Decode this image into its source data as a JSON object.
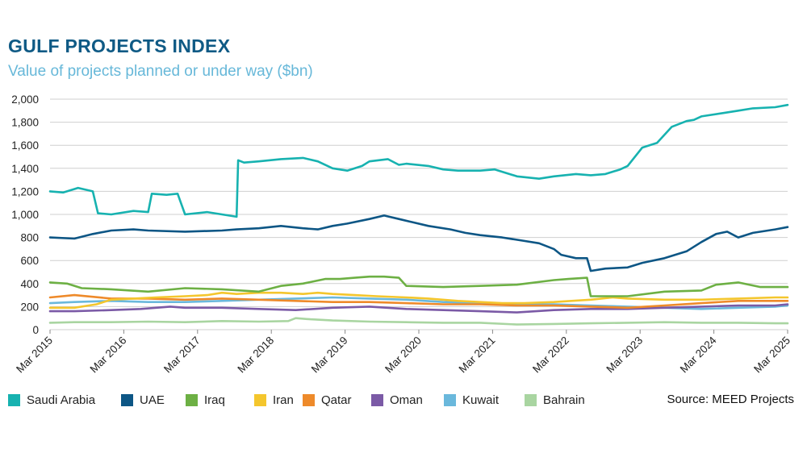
{
  "header": {
    "title": "GULF PROJECTS INDEX",
    "subtitle": "Value of projects planned or under way ($bn)",
    "title_color": "#0f5a85",
    "subtitle_color": "#67b8d9"
  },
  "source": "Source: MEED Projects",
  "chart_data": {
    "type": "line",
    "title": "GULF PROJECTS INDEX",
    "subtitle": "Value of projects planned or under way ($bn)",
    "ylim": [
      0,
      2000
    ],
    "yticks": [
      0,
      200,
      400,
      600,
      800,
      1000,
      1200,
      1400,
      1600,
      1800,
      2000
    ],
    "ytick_labels": [
      "0",
      "200",
      "400",
      "600",
      "800",
      "1,000",
      "1,200",
      "1,400",
      "1,600",
      "1,800",
      "2,000"
    ],
    "xlim": [
      2015.17,
      2025.17
    ],
    "xticks": [
      2015.17,
      2016.17,
      2017.17,
      2018.17,
      2019.17,
      2020.17,
      2021.17,
      2022.17,
      2023.17,
      2024.17,
      2025.17
    ],
    "xtick_labels": [
      "Mar 2015",
      "Mar 2016",
      "Mar 2017",
      "Mar 2018",
      "Mar 2019",
      "Mar 2020",
      "Mar 2021",
      "Mar 2022",
      "Mar 2023",
      "Mar 2024",
      "Mar 2025"
    ],
    "grid": "horizontal",
    "legend_position": "bottom",
    "series": [
      {
        "name": "Saudi Arabia",
        "color": "#17b2b0",
        "x": [
          2015.17,
          2015.35,
          2015.55,
          2015.75,
          2015.82,
          2016.0,
          2016.3,
          2016.5,
          2016.55,
          2016.75,
          2016.9,
          2017.0,
          2017.3,
          2017.5,
          2017.7,
          2017.72,
          2017.8,
          2018.0,
          2018.3,
          2018.6,
          2018.8,
          2019.0,
          2019.2,
          2019.4,
          2019.5,
          2019.75,
          2019.9,
          2020.0,
          2020.3,
          2020.5,
          2020.7,
          2021.0,
          2021.2,
          2021.5,
          2021.8,
          2022.0,
          2022.3,
          2022.5,
          2022.7,
          2022.9,
          2023.0,
          2023.2,
          2023.4,
          2023.6,
          2023.8,
          2023.9,
          2024.0,
          2024.3,
          2024.5,
          2024.7,
          2025.0,
          2025.17
        ],
        "values": [
          1200,
          1190,
          1230,
          1200,
          1010,
          1000,
          1030,
          1020,
          1180,
          1170,
          1180,
          1000,
          1020,
          1000,
          980,
          1470,
          1450,
          1460,
          1480,
          1490,
          1460,
          1400,
          1380,
          1420,
          1460,
          1480,
          1430,
          1440,
          1420,
          1390,
          1380,
          1380,
          1390,
          1330,
          1310,
          1330,
          1350,
          1340,
          1350,
          1390,
          1420,
          1580,
          1620,
          1760,
          1810,
          1820,
          1850,
          1880,
          1900,
          1920,
          1930,
          1950
        ]
      },
      {
        "name": "UAE",
        "color": "#0d5685",
        "x": [
          2015.17,
          2015.5,
          2015.75,
          2016.0,
          2016.3,
          2016.5,
          2017.0,
          2017.5,
          2017.7,
          2018.0,
          2018.3,
          2018.6,
          2018.8,
          2019.0,
          2019.2,
          2019.5,
          2019.7,
          2019.9,
          2020.1,
          2020.3,
          2020.6,
          2020.8,
          2021.0,
          2021.3,
          2021.6,
          2021.8,
          2022.0,
          2022.1,
          2022.3,
          2022.45,
          2022.5,
          2022.7,
          2023.0,
          2023.2,
          2023.5,
          2023.8,
          2024.0,
          2024.2,
          2024.35,
          2024.5,
          2024.7,
          2025.0,
          2025.17
        ],
        "values": [
          800,
          790,
          830,
          860,
          870,
          860,
          850,
          860,
          870,
          880,
          900,
          880,
          870,
          900,
          920,
          960,
          990,
          960,
          930,
          900,
          870,
          840,
          820,
          800,
          770,
          750,
          700,
          650,
          620,
          620,
          510,
          530,
          540,
          580,
          620,
          680,
          760,
          830,
          850,
          800,
          840,
          870,
          890
        ]
      },
      {
        "name": "Iraq",
        "color": "#6db044",
        "x": [
          2015.17,
          2015.4,
          2015.6,
          2016.0,
          2016.5,
          2017.0,
          2017.5,
          2018.0,
          2018.3,
          2018.6,
          2018.9,
          2019.1,
          2019.3,
          2019.5,
          2019.7,
          2019.9,
          2020.0,
          2020.5,
          2021.0,
          2021.5,
          2022.0,
          2022.2,
          2022.45,
          2022.5,
          2022.8,
          2023.0,
          2023.5,
          2024.0,
          2024.2,
          2024.5,
          2024.8,
          2025.17
        ],
        "values": [
          410,
          400,
          360,
          350,
          330,
          360,
          350,
          330,
          380,
          400,
          440,
          440,
          450,
          460,
          460,
          450,
          380,
          370,
          380,
          390,
          430,
          440,
          450,
          290,
          290,
          290,
          330,
          340,
          390,
          410,
          370,
          370
        ]
      },
      {
        "name": "Iran",
        "color": "#f4c62d",
        "x": [
          2015.17,
          2015.5,
          2015.8,
          2016.0,
          2016.3,
          2016.6,
          2017.0,
          2017.3,
          2017.5,
          2017.7,
          2018.0,
          2018.3,
          2018.6,
          2018.8,
          2019.0,
          2019.3,
          2019.6,
          2020.0,
          2020.3,
          2020.7,
          2021.0,
          2021.3,
          2021.6,
          2022.0,
          2022.5,
          2022.8,
          2023.0,
          2023.5,
          2024.0,
          2024.5,
          2025.0,
          2025.17
        ],
        "values": [
          190,
          190,
          220,
          260,
          270,
          280,
          290,
          300,
          320,
          310,
          320,
          320,
          310,
          320,
          310,
          300,
          290,
          280,
          270,
          250,
          240,
          230,
          230,
          240,
          260,
          280,
          270,
          260,
          260,
          270,
          280,
          280
        ]
      },
      {
        "name": "Qatar",
        "color": "#ee8a2a",
        "x": [
          2015.17,
          2015.5,
          2016.0,
          2016.5,
          2017.0,
          2017.5,
          2018.0,
          2018.5,
          2019.0,
          2019.5,
          2020.0,
          2020.5,
          2021.0,
          2021.5,
          2022.0,
          2022.5,
          2023.0,
          2023.5,
          2024.0,
          2024.5,
          2025.0,
          2025.17
        ],
        "values": [
          280,
          300,
          270,
          270,
          260,
          270,
          260,
          250,
          240,
          240,
          230,
          220,
          220,
          210,
          210,
          200,
          190,
          210,
          230,
          250,
          250,
          250
        ]
      },
      {
        "name": "Oman",
        "color": "#7b5aa6",
        "x": [
          2015.17,
          2015.5,
          2016.0,
          2016.4,
          2016.8,
          2017.0,
          2017.5,
          2018.0,
          2018.5,
          2019.0,
          2019.5,
          2020.0,
          2020.5,
          2021.0,
          2021.5,
          2022.0,
          2022.5,
          2023.0,
          2023.5,
          2024.0,
          2024.5,
          2025.0,
          2025.17
        ],
        "values": [
          160,
          160,
          170,
          180,
          200,
          190,
          190,
          180,
          170,
          190,
          200,
          180,
          170,
          160,
          150,
          170,
          180,
          180,
          190,
          200,
          210,
          210,
          220
        ]
      },
      {
        "name": "Kuwait",
        "color": "#6ab8dc",
        "x": [
          2015.17,
          2015.5,
          2016.0,
          2016.5,
          2017.0,
          2017.5,
          2018.0,
          2018.5,
          2019.0,
          2019.5,
          2020.0,
          2020.5,
          2021.0,
          2021.5,
          2022.0,
          2022.5,
          2023.0,
          2023.5,
          2024.0,
          2024.5,
          2025.0,
          2025.17
        ],
        "values": [
          230,
          240,
          250,
          240,
          240,
          250,
          260,
          270,
          280,
          270,
          260,
          240,
          230,
          220,
          220,
          210,
          200,
          190,
          180,
          190,
          200,
          210
        ]
      },
      {
        "name": "Bahrain",
        "color": "#a9d5a1",
        "x": [
          2015.17,
          2015.5,
          2016.0,
          2016.5,
          2017.0,
          2017.5,
          2018.0,
          2018.4,
          2018.5,
          2018.7,
          2019.0,
          2019.5,
          2020.0,
          2020.5,
          2021.0,
          2021.5,
          2022.0,
          2022.5,
          2023.0,
          2023.5,
          2024.0,
          2024.5,
          2025.0,
          2025.17
        ],
        "values": [
          60,
          65,
          65,
          70,
          65,
          75,
          70,
          75,
          100,
          90,
          80,
          70,
          65,
          60,
          60,
          45,
          50,
          55,
          60,
          65,
          60,
          60,
          55,
          55
        ]
      }
    ]
  }
}
